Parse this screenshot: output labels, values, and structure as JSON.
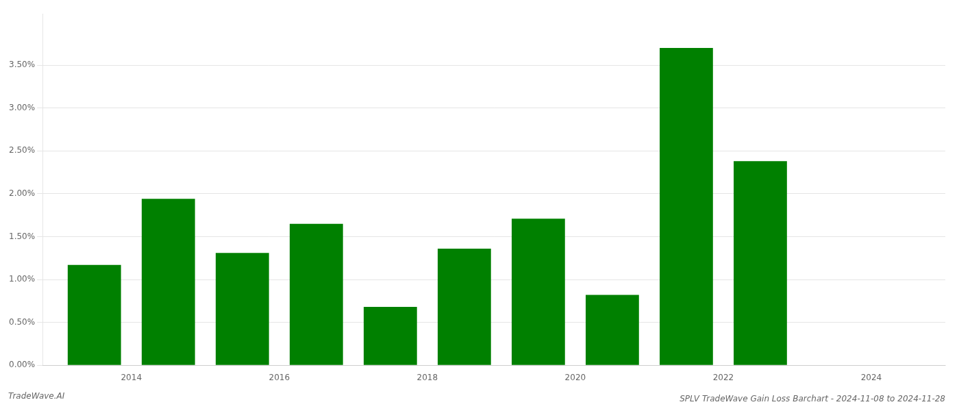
{
  "chart_data": {
    "type": "bar",
    "title": "SPLV TradeWave Gain Loss Barchart - 2024-11-08 to 2024-11-28",
    "annotations": [
      "TradeWave.AI"
    ],
    "x": [
      2013.5,
      2014.5,
      2015.5,
      2016.5,
      2017.5,
      2018.5,
      2019.5,
      2020.5,
      2021.5,
      2022.5
    ],
    "values": [
      1.17,
      1.94,
      1.31,
      1.65,
      0.68,
      1.36,
      1.71,
      0.82,
      3.7,
      2.38
    ],
    "color": "#008000",
    "xlim": [
      2012.8,
      2025.0
    ],
    "xticks": [
      2014,
      2016,
      2018,
      2020,
      2022,
      2024
    ],
    "ylim": [
      0,
      4.1
    ],
    "yticks": [
      {
        "value": 0.0,
        "label": "0.00%"
      },
      {
        "value": 0.5,
        "label": "0.50%"
      },
      {
        "value": 1.0,
        "label": "1.00%"
      },
      {
        "value": 1.5,
        "label": "1.50%"
      },
      {
        "value": 2.0,
        "label": "2.00%"
      },
      {
        "value": 2.5,
        "label": "2.50%"
      },
      {
        "value": 3.0,
        "label": "3.00%"
      },
      {
        "value": 3.5,
        "label": "3.50%"
      }
    ],
    "grid": "y"
  }
}
